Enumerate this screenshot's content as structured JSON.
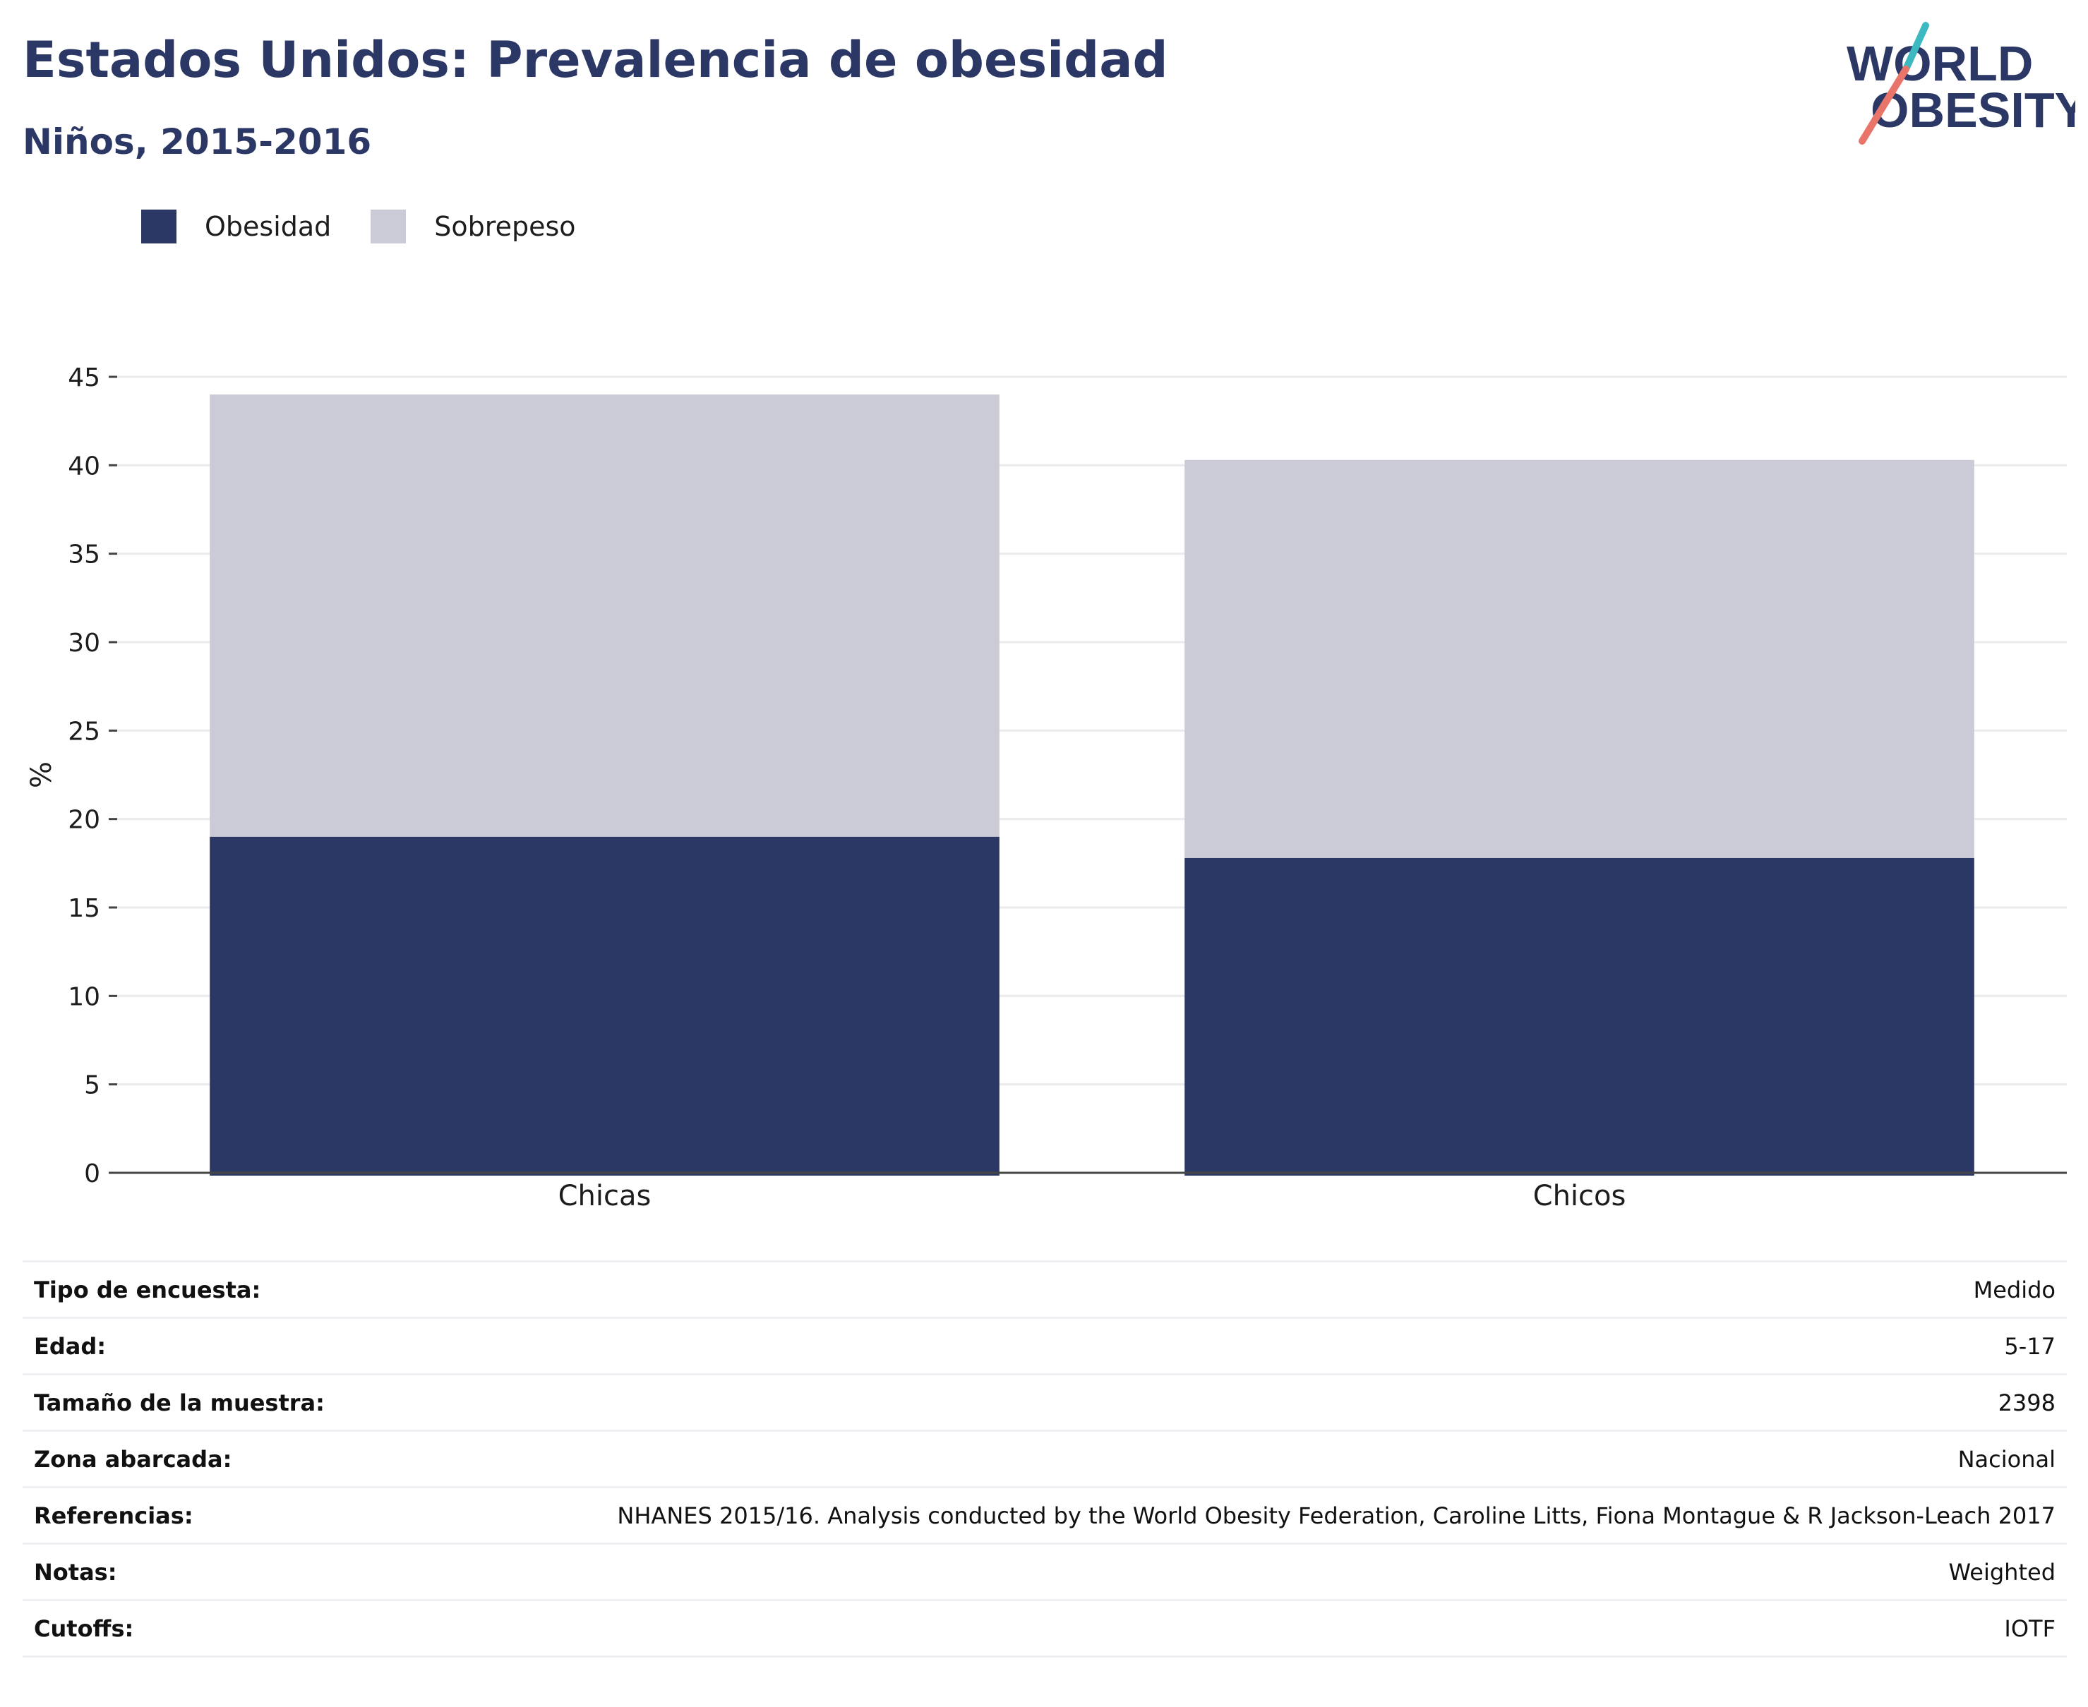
{
  "header": {
    "title": "Estados Unidos: Prevalencia de obesidad",
    "subtitle": "Niños, 2015-2016"
  },
  "logo": {
    "line1": "WORLD",
    "line2": "OBESITY",
    "text_color": "#2b3764",
    "slash_top_color": "#3bb8c0",
    "slash_bottom_color": "#e8746a"
  },
  "chart_data": {
    "type": "bar",
    "stacked": true,
    "categories": [
      "Chicas",
      "Chicos"
    ],
    "series": [
      {
        "name": "Obesidad",
        "values": [
          19.0,
          17.8
        ],
        "color": "#2b3764"
      },
      {
        "name": "Sobrepeso",
        "values": [
          25.0,
          22.5
        ],
        "color": "#cacbd7"
      }
    ],
    "ylabel": "%",
    "ylim": [
      0,
      45
    ],
    "yticks": [
      0,
      5,
      10,
      15,
      20,
      25,
      30,
      35,
      40,
      45
    ],
    "grid": true,
    "legend_position": "top-left"
  },
  "info": [
    {
      "label": "Tipo de encuesta:",
      "value": "Medido"
    },
    {
      "label": "Edad:",
      "value": "5-17"
    },
    {
      "label": "Tamaño de la muestra:",
      "value": "2398"
    },
    {
      "label": "Zona abarcada:",
      "value": "Nacional"
    },
    {
      "label": "Referencias:",
      "value": "NHANES 2015/16. Analysis conducted by the World Obesity Federation, Caroline Litts, Fiona Montague & R Jackson-Leach 2017"
    },
    {
      "label": "Notas:",
      "value": "Weighted"
    },
    {
      "label": "Cutoffs:",
      "value": "IOTF"
    }
  ]
}
